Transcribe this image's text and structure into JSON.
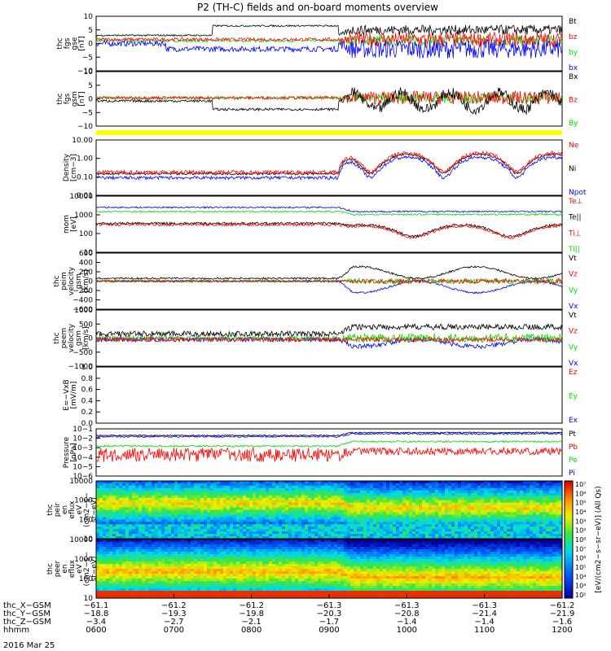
{
  "title": "P2 (TH-C) fields and on-board moments overview",
  "date_label": "2016 Mar 25",
  "colors": {
    "black": "#000000",
    "red": "#ff0000",
    "green": "#00dd00",
    "blue": "#0000ff",
    "yellow": "#ffff00"
  },
  "chart_data": [
    {
      "type": "line",
      "ylabel": [
        "thc",
        "fgs",
        "gse",
        "[nT]"
      ],
      "ylim": [
        -10,
        10
      ],
      "yticks": [
        "10",
        "5",
        "0",
        "−5",
        "−10"
      ],
      "legend": [
        {
          "name": "Bt",
          "color": "black"
        },
        {
          "name": "bz",
          "color": "red"
        },
        {
          "name": "by",
          "color": "green"
        },
        {
          "name": "bx",
          "color": "blue"
        }
      ]
    },
    {
      "type": "line",
      "ylabel": [
        "thc",
        "fgs",
        "gsm",
        "[nT]"
      ],
      "ylim": [
        -13,
        13
      ],
      "yticks": [
        "10",
        "5",
        "0",
        "−5",
        "−10"
      ],
      "legend": [
        {
          "name": "Bx",
          "color": "black"
        },
        {
          "name": "Bz",
          "color": "red"
        },
        {
          "name": "By",
          "color": "green"
        }
      ]
    },
    {
      "type": "line",
      "ylabel": [
        "Density",
        "[cm−3]"
      ],
      "ylim": [
        0.01,
        10
      ],
      "yscale": "log",
      "yticks": [
        "10.00",
        "1.00",
        "0.10",
        "0.01"
      ],
      "legend": [
        {
          "name": "Ne",
          "color": "red"
        },
        {
          "name": "Ni",
          "color": "black"
        },
        {
          "name": "Npot",
          "color": "blue"
        }
      ]
    },
    {
      "type": "line",
      "ylabel": [
        "mom",
        "[eV]"
      ],
      "ylim": [
        10,
        10000
      ],
      "yscale": "log",
      "yticks": [
        "10000",
        "1000",
        "100",
        "10"
      ],
      "legend": [
        {
          "name": "Te⊥",
          "color": "red"
        },
        {
          "name": "Te||",
          "color": "black"
        },
        {
          "name": "Ti⊥",
          "color": "red"
        },
        {
          "name": "Ti||",
          "color": "green"
        }
      ]
    },
    {
      "type": "line",
      "ylabel": [
        "thc",
        "peim",
        "velocity",
        "gsm",
        "[km/s]"
      ],
      "ylim": [
        -600,
        600
      ],
      "yticks": [
        "600",
        "400",
        "200",
        "0",
        "−200",
        "−400",
        "−600"
      ],
      "legend": [
        {
          "name": "Vt",
          "color": "black"
        },
        {
          "name": "Vz",
          "color": "red"
        },
        {
          "name": "Vy",
          "color": "green"
        },
        {
          "name": "Vx",
          "color": "blue"
        }
      ]
    },
    {
      "type": "line",
      "ylabel": [
        "thc",
        "peem",
        "velocity",
        "gsm",
        "[km/s]"
      ],
      "ylim": [
        -1000,
        1000
      ],
      "yticks": [
        "1000",
        "500",
        "0",
        "−500",
        "−1000"
      ],
      "legend": [
        {
          "name": "Vt",
          "color": "black"
        },
        {
          "name": "Vz",
          "color": "red"
        },
        {
          "name": "Vy",
          "color": "green"
        },
        {
          "name": "Vx",
          "color": "blue"
        }
      ]
    },
    {
      "type": "line",
      "ylabel": [
        "E=−VxB",
        "[mV/m]"
      ],
      "ylim": [
        0,
        1
      ],
      "yticks": [
        "1.0",
        "0.8",
        "0.6",
        "0.4",
        "0.2",
        "0.0"
      ],
      "legend": [
        {
          "name": "Ez",
          "color": "red"
        },
        {
          "name": "Ey",
          "color": "green"
        },
        {
          "name": "Ex",
          "color": "blue"
        }
      ]
    },
    {
      "type": "line",
      "ylabel": [
        "Pressure",
        "[nPa]"
      ],
      "ylim": [
        1e-06,
        0.1
      ],
      "yscale": "log",
      "yticks": [
        "10−1",
        "10−2",
        "10−3",
        "10−4",
        "10−5",
        "10−6"
      ],
      "legend": [
        {
          "name": "Pt",
          "color": "black"
        },
        {
          "name": "Pb",
          "color": "red"
        },
        {
          "name": "Pe",
          "color": "green"
        },
        {
          "name": "Pi",
          "color": "blue"
        }
      ]
    },
    {
      "type": "heatmap",
      "ylabel": [
        "thc",
        "peir",
        "en",
        "eflux",
        "eV",
        "(cm2−s−",
        "sr−eV)"
      ],
      "ylim": [
        5,
        25000
      ],
      "yscale": "log",
      "yticks": [
        "10000",
        "1000",
        "100",
        "10"
      ]
    },
    {
      "type": "heatmap",
      "ylabel": [
        "thc",
        "peer",
        "en",
        "eflux",
        "eV",
        "(cm2−s−",
        "sr−eV)"
      ],
      "ylim": [
        5,
        25000
      ],
      "yscale": "log",
      "yticks": [
        "10000",
        "1000",
        "100",
        "10"
      ]
    }
  ],
  "colorbar": {
    "label": "[eV/(cm2−s−sr−eV)] (All Qs)",
    "ticks": [
      "10⁷",
      "10⁶",
      "10⁵",
      "10⁴",
      "10³",
      "10²",
      "10⁸",
      "10⁷",
      "10⁶",
      "10⁵",
      "10⁴",
      "10³",
      "10²"
    ]
  },
  "x_axis": {
    "row_labels": [
      "thc_X−GSM",
      "thc_Y−GSM",
      "thc_Z−GSM",
      "hhmm"
    ],
    "columns": [
      {
        "x": "−61.1",
        "y": "−18.8",
        "z": "−3.4",
        "t": "0600"
      },
      {
        "x": "−61.2",
        "y": "−19.3",
        "z": "−2.7",
        "t": "0700"
      },
      {
        "x": "−61.2",
        "y": "−19.8",
        "z": "−2.1",
        "t": "0800"
      },
      {
        "x": "−61.3",
        "y": "−20.3",
        "z": "−1.7",
        "t": "0900"
      },
      {
        "x": "−61.3",
        "y": "−20.8",
        "z": "−1.4",
        "t": "1000"
      },
      {
        "x": "−61.3",
        "y": "−21.4",
        "z": "−1.4",
        "t": "1100"
      },
      {
        "x": "−61.2",
        "y": "−21.9",
        "z": "−1.6",
        "t": "1200"
      }
    ]
  }
}
